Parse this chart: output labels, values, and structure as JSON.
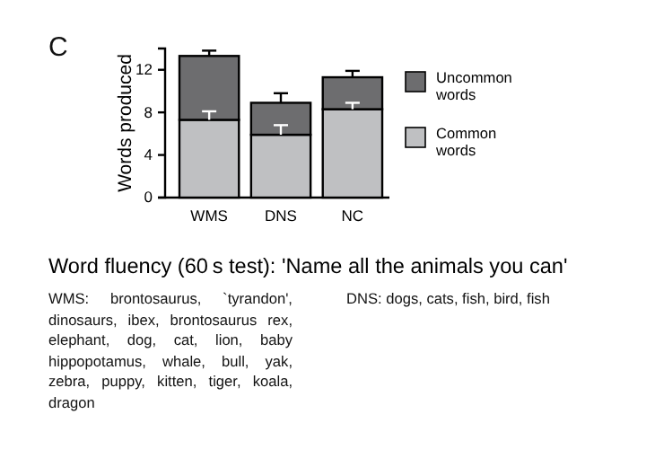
{
  "chart_data": {
    "type": "bar",
    "title": "Word fluency (60 s test): 'Name all the animals you can'",
    "ylabel": "Words produced",
    "categories": [
      "WMS",
      "DNS",
      "NC"
    ],
    "stacked": true,
    "series": [
      {
        "name": "Common\nwords",
        "color": "#bfc0c2",
        "values": [
          7.3,
          5.9,
          8.3
        ],
        "errors": [
          [
            7.3,
            8.1
          ],
          [
            5.9,
            6.8
          ],
          [
            8.3,
            8.9
          ]
        ]
      },
      {
        "name": "Uncommon\nwords",
        "color": "#6d6d6f",
        "values": [
          6.0,
          3.0,
          3.0
        ],
        "errors": [
          [
            13.3,
            13.8
          ],
          [
            8.9,
            9.8
          ],
          [
            11.3,
            11.9
          ]
        ]
      }
    ],
    "ylim": [
      0,
      14
    ],
    "yticks": [
      0,
      4,
      8,
      12
    ],
    "grid": false,
    "legend": "right",
    "annotations": [
      "C",
      "WMS: brontosaurus, `tyrandon', dinosaurs, ibex, brontosaurus rex, elephant, dog, cat, lion, baby hippopotamus, whale, bull, yak, zebra, puppy, kitten, tiger, koala, dragon",
      "DNS:  dogs, cats, fish, bird, fish"
    ]
  }
}
